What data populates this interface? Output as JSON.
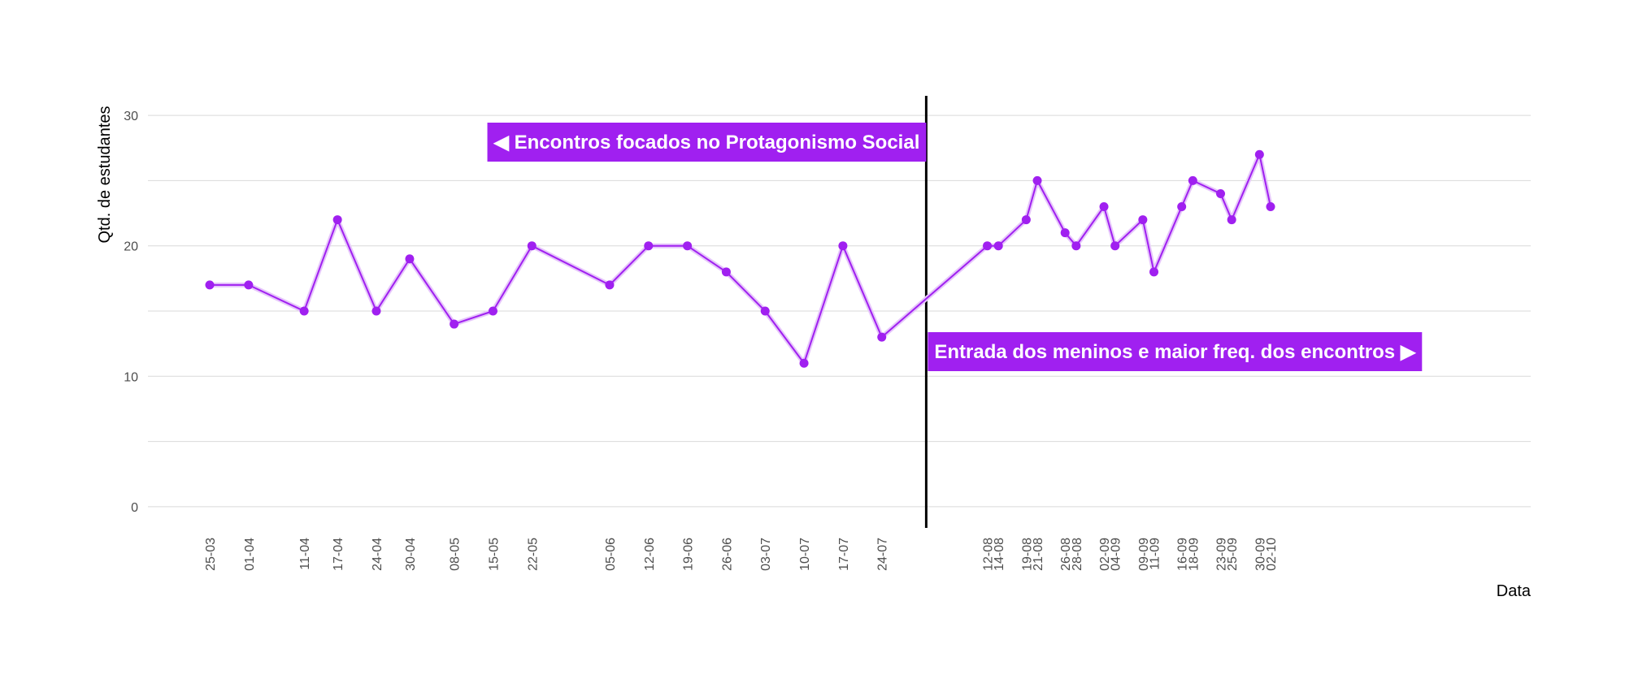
{
  "chart_data": {
    "type": "line",
    "title": "",
    "xlabel": "Data",
    "ylabel": "Qtd. de estudantes",
    "ylim": [
      -1.5,
      31.5
    ],
    "yticks": [
      0,
      10,
      20,
      30
    ],
    "grid": true,
    "x_axis_type": "date",
    "x": [
      "03-25",
      "04-01",
      "04-11",
      "04-17",
      "04-24",
      "04-30",
      "05-08",
      "05-15",
      "05-22",
      "06-05",
      "06-12",
      "06-19",
      "06-26",
      "07-03",
      "07-10",
      "07-17",
      "07-24",
      "08-12",
      "08-14",
      "08-19",
      "08-21",
      "08-26",
      "08-28",
      "09-02",
      "09-04",
      "09-09",
      "09-11",
      "09-16",
      "09-18",
      "09-23",
      "09-25",
      "09-30",
      "10-02"
    ],
    "tick_labels": [
      "25-03",
      "01-04",
      "11-04",
      "17-04",
      "24-04",
      "30-04",
      "08-05",
      "15-05",
      "22-05",
      "05-06",
      "12-06",
      "19-06",
      "26-06",
      "03-07",
      "10-07",
      "17-07",
      "24-07",
      "12-08",
      "14-08",
      "19-08",
      "21-08",
      "26-08",
      "28-08",
      "02-09",
      "04-09",
      "09-09",
      "11-09",
      "16-09",
      "18-09",
      "23-09",
      "25-09",
      "30-09",
      "02-10"
    ],
    "series": [
      {
        "values": [
          17,
          17,
          15,
          22,
          15,
          19,
          14,
          15,
          20,
          17,
          20,
          20,
          18,
          15,
          11,
          20,
          13,
          20,
          20,
          22,
          25,
          21,
          20,
          23,
          20,
          22,
          18,
          23,
          25,
          24,
          22,
          27,
          23
        ]
      }
    ],
    "vline": {
      "x": "08-01"
    },
    "annotations": [
      {
        "id": "left",
        "text": "◀ Encontros focados no Protagonismo Social"
      },
      {
        "id": "right",
        "text": "Entrada dos meninos e maior freq. dos encontros ▶"
      }
    ],
    "colors": {
      "line": "#a020f0",
      "line_halo": "#e6c6fb",
      "point": "#a020f0",
      "vline": "#000000",
      "grid": "#d9d9d9",
      "annotation_bg": "#a020f0"
    }
  }
}
